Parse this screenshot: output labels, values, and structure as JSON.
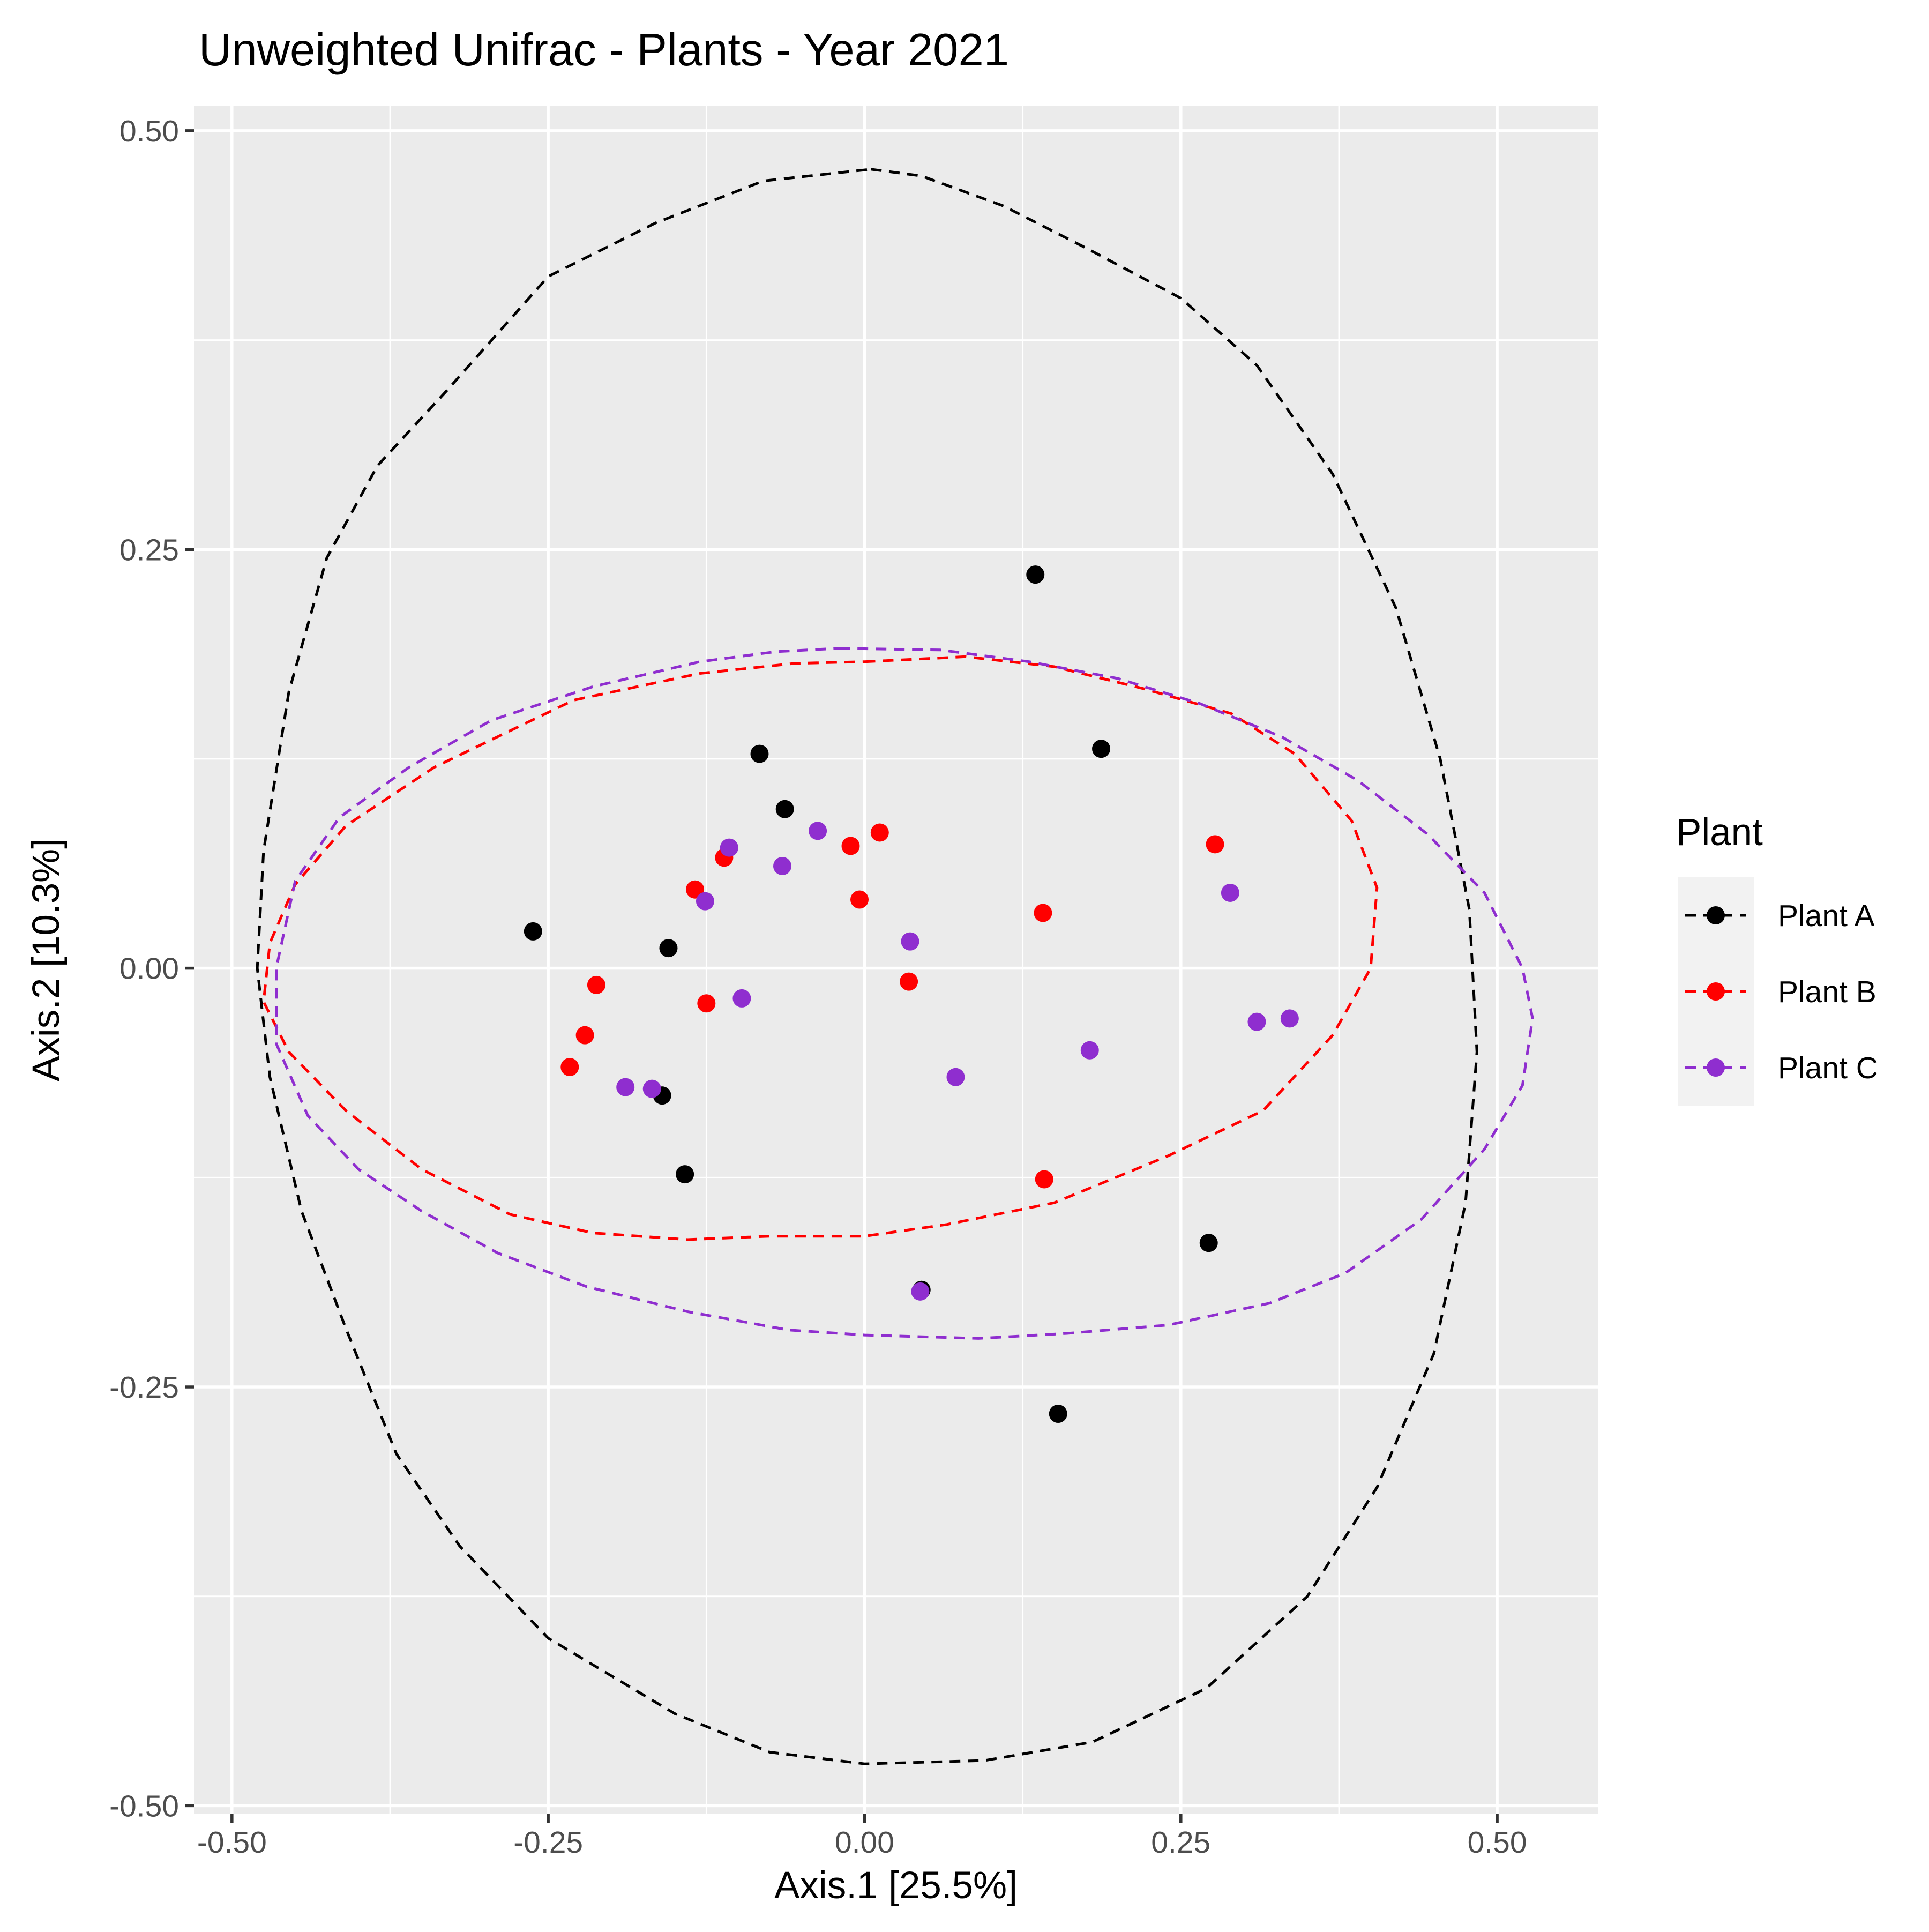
{
  "chart_data": {
    "type": "scatter",
    "title": "Unweighted Unifrac - Plants - Year 2021",
    "xlabel": "Axis.1   [25.5%]",
    "ylabel": "Axis.2   [10.3%]",
    "xlim": [
      -0.53,
      0.58
    ],
    "ylim": [
      -0.505,
      0.515
    ],
    "x_ticks": [
      -0.5,
      -0.25,
      0.0,
      0.25,
      0.5
    ],
    "x_tick_labels": [
      "-0.50",
      "-0.25",
      "0.00",
      "0.25",
      "0.50"
    ],
    "y_ticks": [
      -0.5,
      -0.25,
      0.0,
      0.25,
      0.5
    ],
    "y_tick_labels": [
      "-0.50",
      "-0.25",
      "0.00",
      "0.25",
      "0.50"
    ],
    "grid": true,
    "legend": {
      "title": "Plant",
      "position": "right"
    },
    "series": [
      {
        "name": "Plant A",
        "color": "#000000",
        "points": [
          [
            0.135,
            0.235
          ],
          [
            0.187,
            0.131
          ],
          [
            -0.083,
            0.128
          ],
          [
            -0.063,
            0.095
          ],
          [
            -0.262,
            0.022
          ],
          [
            -0.155,
            0.012
          ],
          [
            -0.16,
            -0.076
          ],
          [
            -0.142,
            -0.123
          ],
          [
            0.045,
            -0.192
          ],
          [
            0.272,
            -0.164
          ],
          [
            0.153,
            -0.266
          ]
        ],
        "ellipse": {
          "center": [
            0.005,
            0.003
          ],
          "points": [
            [
              0.005,
              0.477
            ],
            [
              0.045,
              0.473
            ],
            [
              0.11,
              0.455
            ],
            [
              0.175,
              0.43
            ],
            [
              0.25,
              0.4
            ],
            [
              0.31,
              0.36
            ],
            [
              0.37,
              0.295
            ],
            [
              0.42,
              0.215
            ],
            [
              0.455,
              0.125
            ],
            [
              0.478,
              0.035
            ],
            [
              0.484,
              -0.05
            ],
            [
              0.475,
              -0.14
            ],
            [
              0.45,
              -0.23
            ],
            [
              0.405,
              -0.31
            ],
            [
              0.35,
              -0.375
            ],
            [
              0.27,
              -0.43
            ],
            [
              0.18,
              -0.462
            ],
            [
              0.095,
              -0.473
            ],
            [
              0.0,
              -0.475
            ],
            [
              -0.075,
              -0.468
            ],
            [
              -0.15,
              -0.445
            ],
            [
              -0.25,
              -0.4
            ],
            [
              -0.32,
              -0.345
            ],
            [
              -0.37,
              -0.29
            ],
            [
              -0.41,
              -0.215
            ],
            [
              -0.445,
              -0.145
            ],
            [
              -0.47,
              -0.065
            ],
            [
              -0.48,
              0.0
            ],
            [
              -0.475,
              0.07
            ],
            [
              -0.455,
              0.165
            ],
            [
              -0.425,
              0.245
            ],
            [
              -0.385,
              0.3
            ],
            [
              -0.33,
              0.345
            ],
            [
              -0.25,
              0.413
            ],
            [
              -0.165,
              0.445
            ],
            [
              -0.08,
              0.47
            ]
          ]
        }
      },
      {
        "name": "Plant B",
        "color": "#FF0000",
        "points": [
          [
            0.012,
            0.081
          ],
          [
            -0.011,
            0.073
          ],
          [
            -0.111,
            0.066
          ],
          [
            -0.134,
            0.047
          ],
          [
            -0.004,
            0.041
          ],
          [
            0.277,
            0.074
          ],
          [
            0.141,
            0.033
          ],
          [
            -0.212,
            -0.01
          ],
          [
            0.035,
            -0.008
          ],
          [
            -0.125,
            -0.021
          ],
          [
            -0.221,
            -0.04
          ],
          [
            -0.233,
            -0.059
          ],
          [
            0.142,
            -0.126
          ]
        ],
        "ellipse": {
          "center": [
            -0.04,
            0.01
          ],
          "points": [
            [
              0.0,
              0.183
            ],
            [
              0.08,
              0.186
            ],
            [
              0.15,
              0.18
            ],
            [
              0.22,
              0.167
            ],
            [
              0.29,
              0.152
            ],
            [
              0.34,
              0.128
            ],
            [
              0.385,
              0.088
            ],
            [
              0.405,
              0.048
            ],
            [
              0.4,
              0.0
            ],
            [
              0.37,
              -0.04
            ],
            [
              0.315,
              -0.085
            ],
            [
              0.24,
              -0.112
            ],
            [
              0.15,
              -0.14
            ],
            [
              0.065,
              -0.153
            ],
            [
              0.0,
              -0.16
            ],
            [
              -0.075,
              -0.16
            ],
            [
              -0.14,
              -0.162
            ],
            [
              -0.215,
              -0.158
            ],
            [
              -0.28,
              -0.147
            ],
            [
              -0.35,
              -0.12
            ],
            [
              -0.41,
              -0.085
            ],
            [
              -0.455,
              -0.05
            ],
            [
              -0.475,
              -0.02
            ],
            [
              -0.47,
              0.015
            ],
            [
              -0.45,
              0.05
            ],
            [
              -0.41,
              0.085
            ],
            [
              -0.34,
              0.12
            ],
            [
              -0.23,
              0.16
            ],
            [
              -0.13,
              0.176
            ],
            [
              -0.055,
              0.182
            ]
          ]
        }
      },
      {
        "name": "Plant C",
        "color": "#8F2ECF",
        "points": [
          [
            -0.037,
            0.082
          ],
          [
            -0.107,
            0.072
          ],
          [
            -0.065,
            0.061
          ],
          [
            -0.126,
            0.04
          ],
          [
            0.289,
            0.045
          ],
          [
            0.036,
            0.016
          ],
          [
            -0.097,
            -0.018
          ],
          [
            0.336,
            -0.03
          ],
          [
            0.31,
            -0.032
          ],
          [
            0.178,
            -0.049
          ],
          [
            0.072,
            -0.065
          ],
          [
            -0.189,
            -0.071
          ],
          [
            -0.168,
            -0.072
          ],
          [
            0.044,
            -0.193
          ]
        ],
        "ellipse": {
          "center": [
            0.03,
            -0.01
          ],
          "points": [
            [
              -0.02,
              0.191
            ],
            [
              0.06,
              0.19
            ],
            [
              0.13,
              0.183
            ],
            [
              0.2,
              0.173
            ],
            [
              0.265,
              0.158
            ],
            [
              0.33,
              0.138
            ],
            [
              0.39,
              0.112
            ],
            [
              0.445,
              0.08
            ],
            [
              0.49,
              0.045
            ],
            [
              0.52,
              0.0
            ],
            [
              0.528,
              -0.03
            ],
            [
              0.52,
              -0.07
            ],
            [
              0.49,
              -0.108
            ],
            [
              0.44,
              -0.15
            ],
            [
              0.38,
              -0.182
            ],
            [
              0.32,
              -0.2
            ],
            [
              0.24,
              -0.213
            ],
            [
              0.16,
              -0.218
            ],
            [
              0.09,
              -0.221
            ],
            [
              0.0,
              -0.219
            ],
            [
              -0.06,
              -0.216
            ],
            [
              -0.14,
              -0.205
            ],
            [
              -0.22,
              -0.19
            ],
            [
              -0.29,
              -0.17
            ],
            [
              -0.35,
              -0.145
            ],
            [
              -0.4,
              -0.12
            ],
            [
              -0.44,
              -0.088
            ],
            [
              -0.465,
              -0.045
            ],
            [
              -0.465,
              0.0
            ],
            [
              -0.45,
              0.052
            ],
            [
              -0.415,
              0.09
            ],
            [
              -0.36,
              0.12
            ],
            [
              -0.295,
              0.148
            ],
            [
              -0.215,
              0.168
            ],
            [
              -0.13,
              0.183
            ],
            [
              -0.07,
              0.189
            ]
          ]
        }
      }
    ]
  }
}
